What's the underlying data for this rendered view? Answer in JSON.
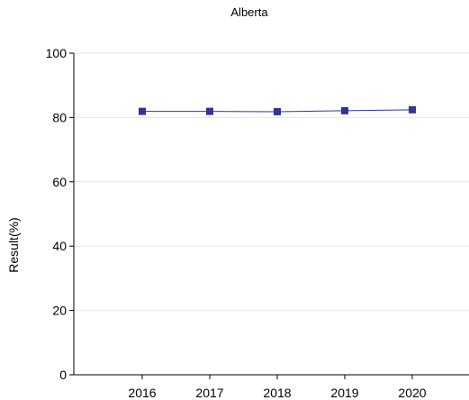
{
  "chart_data": {
    "type": "line",
    "title": "Alberta",
    "xlabel": "",
    "ylabel": "Result(%)",
    "categories": [
      "2016",
      "2017",
      "2018",
      "2019",
      "2020"
    ],
    "series": [
      {
        "values": [
          81.9,
          81.9,
          81.8,
          82.1,
          82.4
        ]
      }
    ],
    "ylim": [
      0,
      100
    ],
    "yticks": [
      "0",
      "20",
      "40",
      "60",
      "80",
      "100"
    ],
    "grid": true,
    "legend": "none",
    "colors": {
      "series": "#333399",
      "marker": "#333399",
      "grid": "#e6e6e6",
      "axis": "#000000"
    }
  }
}
